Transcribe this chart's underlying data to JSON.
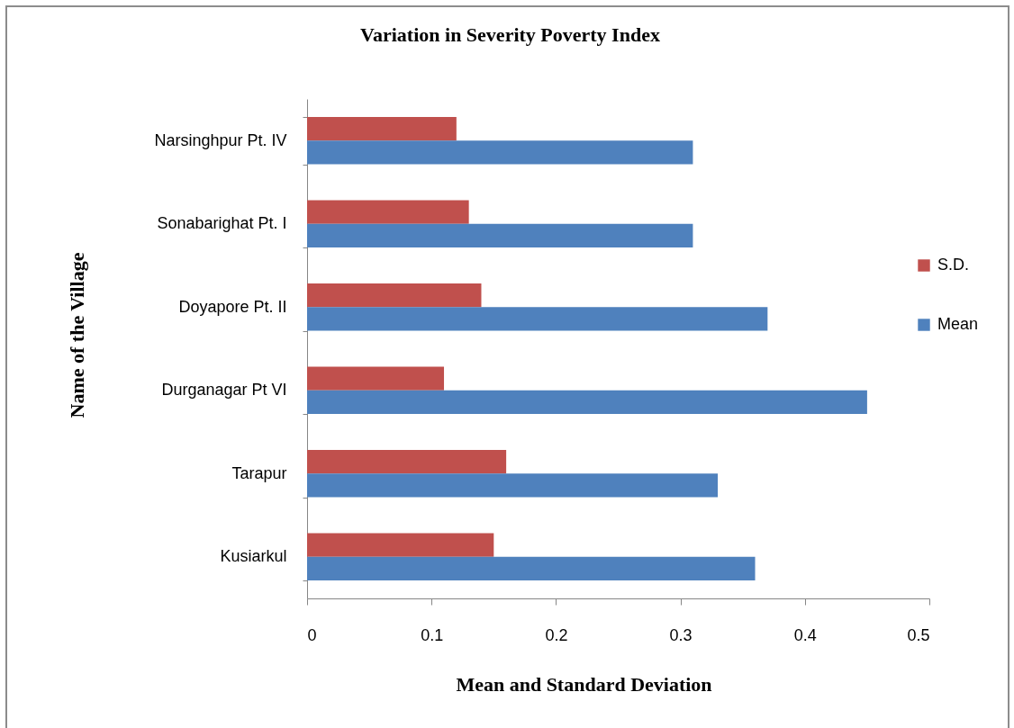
{
  "chart_data": {
    "type": "bar",
    "title": "Variation in Severity Poverty Index",
    "xlabel": "Mean and Standard Deviation",
    "ylabel": "Name of the Village",
    "orientation": "horizontal",
    "categories": [
      "Narsinghpur Pt. IV",
      "Sonabarighat Pt. I",
      "Doyapore Pt. II",
      "Durganagar Pt VI",
      "Tarapur",
      "Kusiarkul"
    ],
    "series": [
      {
        "name": "S.D.",
        "color": "#c0504d",
        "values": [
          0.12,
          0.13,
          0.14,
          0.11,
          0.16,
          0.15
        ]
      },
      {
        "name": "Mean",
        "color": "#4f81bd",
        "values": [
          0.31,
          0.31,
          0.37,
          0.45,
          0.33,
          0.36
        ]
      }
    ],
    "xlim": [
      0,
      0.5
    ],
    "xticks": [
      0,
      0.1,
      0.2,
      0.3,
      0.4,
      0.5
    ],
    "legend": "right"
  }
}
